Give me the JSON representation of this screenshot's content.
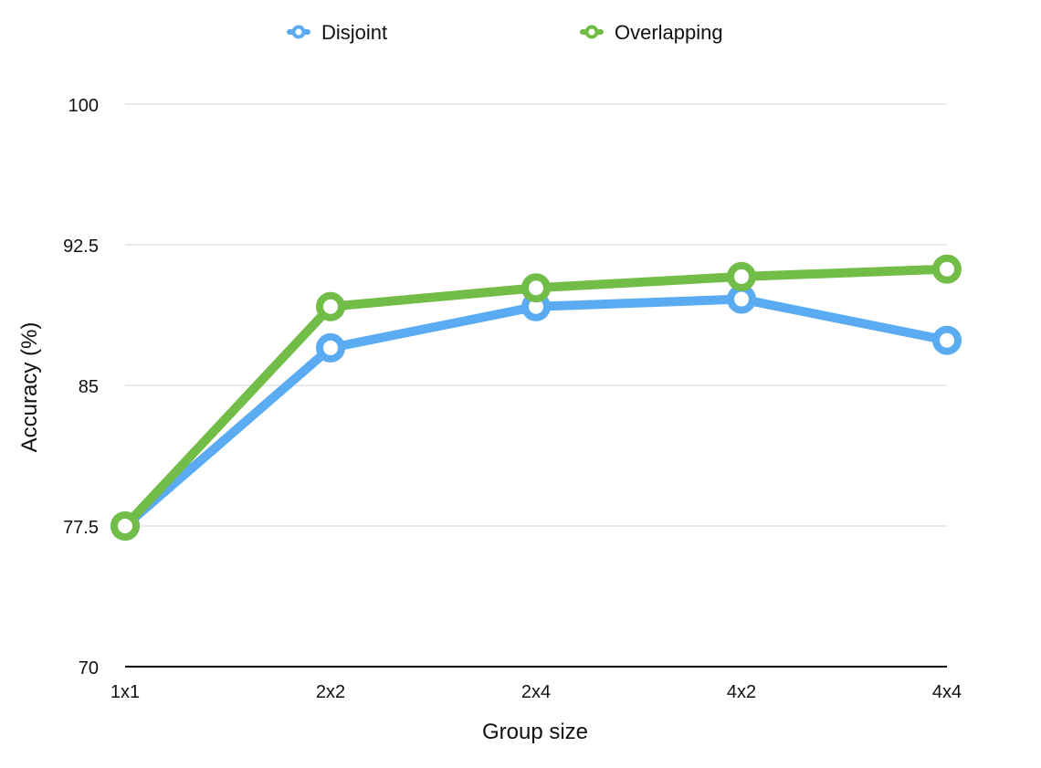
{
  "chart_data": {
    "type": "line",
    "title": "",
    "xlabel": "Group size",
    "ylabel": "Accuracy (%)",
    "categories": [
      "1x1",
      "2x2",
      "2x4",
      "4x2",
      "4x4"
    ],
    "ylim": [
      70,
      100
    ],
    "yticks": [
      "70",
      "77.5",
      "85",
      "92.5",
      "100"
    ],
    "grid": true,
    "legend_position": "top",
    "series": [
      {
        "name": "Disjoint",
        "color": "#5aabf2",
        "values": [
          77.5,
          87.0,
          89.2,
          89.6,
          87.4
        ]
      },
      {
        "name": "Overlapping",
        "color": "#72bd47",
        "values": [
          77.5,
          89.2,
          90.2,
          90.8,
          91.2
        ]
      }
    ]
  }
}
